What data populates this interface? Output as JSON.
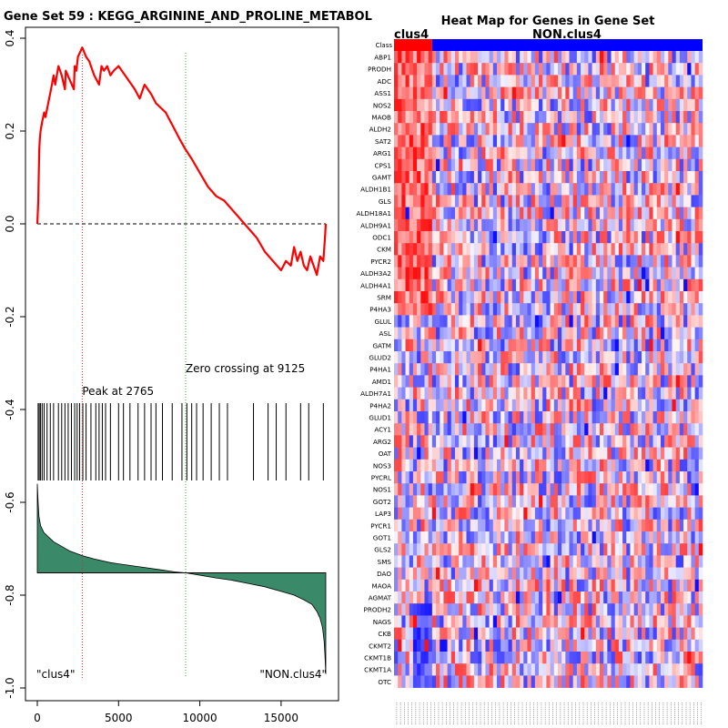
{
  "chart_data": [
    {
      "type": "line",
      "title": "Gene Set  59 : KEGG_ARGININE_AND_PROLINE_METABOL",
      "xlim": [
        0,
        17750
      ],
      "ylim": [
        -1.0,
        0.4
      ],
      "xticks": [
        0,
        5000,
        10000,
        15000
      ],
      "yticks": [
        -1.0,
        -0.8,
        -0.6,
        -0.4,
        -0.2,
        0.0,
        0.2,
        0.4
      ],
      "ytick_labels": [
        "-1.0",
        "-0.8",
        "-0.6",
        "-0.4",
        "-0.2",
        "0.0",
        "0.2",
        "0.4"
      ],
      "peak_label": "Peak at 2765",
      "peak_x": 2765,
      "zero_crossing_label": "Zero crossing at 9125",
      "zero_crossing_x": 9125,
      "left_class_label": "\"clus4\"",
      "right_class_label": "\"NON.clus4\"",
      "enrichment_score": {
        "x": [
          0,
          60,
          80,
          120,
          150,
          200,
          300,
          420,
          500,
          900,
          1000,
          1100,
          1300,
          1500,
          1700,
          1750,
          2000,
          2250,
          2300,
          2400,
          2500,
          2765,
          3000,
          3200,
          3400,
          3500,
          3800,
          3950,
          4100,
          4300,
          4500,
          4700,
          5000,
          5200,
          5600,
          6000,
          6300,
          6600,
          6800,
          7000,
          7300,
          7600,
          7900,
          8200,
          8500,
          8800,
          9125,
          9500,
          10000,
          10500,
          11000,
          11500,
          12000,
          12500,
          13000,
          13500,
          14000,
          14500,
          15000,
          15300,
          15600,
          15800,
          16000,
          16200,
          16400,
          16600,
          16800,
          17000,
          17200,
          17400,
          17600,
          17700,
          17750
        ],
        "y": [
          0.0,
          0.05,
          0.09,
          0.16,
          0.18,
          0.2,
          0.22,
          0.24,
          0.23,
          0.3,
          0.32,
          0.3,
          0.34,
          0.32,
          0.29,
          0.33,
          0.31,
          0.29,
          0.34,
          0.33,
          0.36,
          0.38,
          0.36,
          0.35,
          0.33,
          0.32,
          0.3,
          0.34,
          0.33,
          0.34,
          0.32,
          0.33,
          0.34,
          0.33,
          0.31,
          0.29,
          0.27,
          0.3,
          0.29,
          0.28,
          0.26,
          0.25,
          0.24,
          0.22,
          0.2,
          0.18,
          0.16,
          0.14,
          0.11,
          0.08,
          0.06,
          0.05,
          0.03,
          0.01,
          -0.01,
          -0.03,
          -0.06,
          -0.08,
          -0.1,
          -0.08,
          -0.09,
          -0.05,
          -0.08,
          -0.06,
          -0.09,
          -0.1,
          -0.07,
          -0.09,
          -0.11,
          -0.07,
          -0.08,
          -0.03,
          0.0
        ]
      },
      "hit_positions": [
        50,
        120,
        200,
        300,
        420,
        600,
        800,
        1000,
        1300,
        1500,
        1700,
        1900,
        2100,
        2300,
        2450,
        2600,
        2800,
        3000,
        3300,
        3600,
        3800,
        4000,
        4200,
        4500,
        5000,
        5300,
        5700,
        6200,
        6600,
        7000,
        7300,
        7700,
        8300,
        8900,
        9200,
        9500,
        9800,
        10200,
        10700,
        11200,
        11700,
        13300,
        14200,
        14700,
        15300,
        16200,
        16700,
        17600
      ],
      "ranked_metric": {
        "x": [
          0,
          50,
          100,
          200,
          400,
          700,
          1000,
          1500,
          2000,
          2765,
          3500,
          4500,
          5500,
          6500,
          7500,
          8500,
          9125,
          10000,
          11000,
          12000,
          13000,
          14000,
          15000,
          15800,
          16400,
          16900,
          17200,
          17400,
          17550,
          17650,
          17700,
          17750
        ],
        "y": [
          -0.56,
          -0.6,
          -0.63,
          -0.65,
          -0.665,
          -0.675,
          -0.685,
          -0.695,
          -0.705,
          -0.715,
          -0.722,
          -0.73,
          -0.735,
          -0.74,
          -0.745,
          -0.75,
          -0.752,
          -0.757,
          -0.763,
          -0.768,
          -0.775,
          -0.782,
          -0.792,
          -0.8,
          -0.81,
          -0.82,
          -0.835,
          -0.85,
          -0.87,
          -0.9,
          -0.93,
          -0.97
        ]
      },
      "metric_baseline": -0.752
    },
    {
      "type": "heatmap",
      "title": "Heat Map for Genes in Gene Set",
      "class_label_left": "clus4",
      "class_label_right": "NON.clus4",
      "class_row_label": "Class",
      "clus4_columns": 10,
      "total_columns": 81,
      "genes": [
        "ABP1",
        "PRODH",
        "ADC",
        "ASS1",
        "NOS2",
        "MAOB",
        "ALDH2",
        "SAT2",
        "ARG1",
        "CPS1",
        "GAMT",
        "ALDH1B1",
        "GLS",
        "ALDH18A1",
        "ALDH9A1",
        "ODC1",
        "CKM",
        "PYCR2",
        "ALDH3A2",
        "ALDH4A1",
        "SRM",
        "P4HA3",
        "GLUL",
        "ASL",
        "GATM",
        "GLUD2",
        "P4HA1",
        "AMD1",
        "ALDH7A1",
        "P4HA2",
        "GLUD1",
        "ACY1",
        "ARG2",
        "OAT",
        "NOS3",
        "PYCRL",
        "NOS1",
        "GOT2",
        "LAP3",
        "PYCR1",
        "GOT1",
        "GLS2",
        "SMS",
        "DAO",
        "MAOA",
        "AGMAT",
        "PRODH2",
        "NAGS",
        "CKB",
        "CKMT2",
        "CKMT1B",
        "CKMT1A",
        "OTC"
      ]
    }
  ],
  "colors": {
    "es_line": "#ff0000",
    "metric_fill": "#3a8a6a",
    "peak_line": "#d03030",
    "zero_line": "#22bb22",
    "class_pos": "#ff0000",
    "class_neg": "#0000ff"
  }
}
